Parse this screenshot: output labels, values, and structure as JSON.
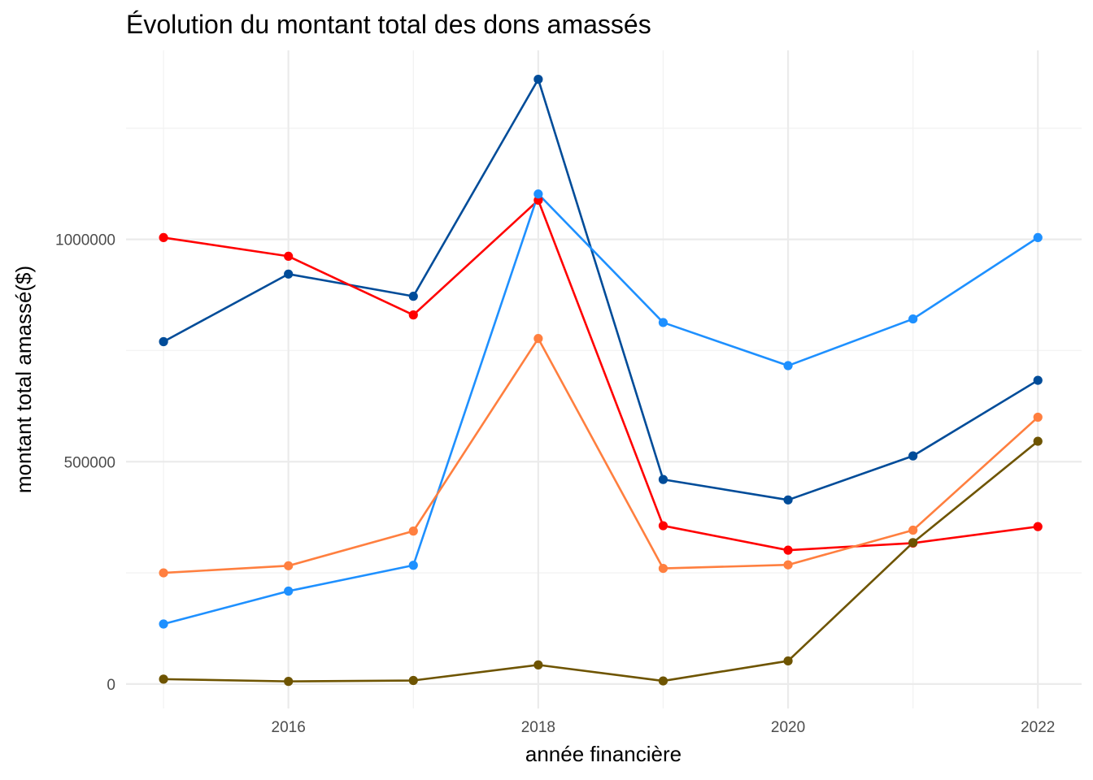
{
  "chart_data": {
    "type": "line",
    "title": "Évolution du montant total des dons amassés",
    "xlabel": "année financière",
    "ylabel": "montant total amassé($)",
    "x": [
      2015,
      2016,
      2017,
      2018,
      2019,
      2020,
      2021,
      2022
    ],
    "xlim": [
      2014.7,
      2022.35
    ],
    "ylim": [
      -55000,
      1425000
    ],
    "x_ticks": [
      2016,
      2018,
      2020,
      2022
    ],
    "x_tick_labels": [
      "2016",
      "2018",
      "2020",
      "2022"
    ],
    "y_ticks": [
      0,
      500000,
      1000000
    ],
    "y_tick_labels": [
      "0",
      "500000",
      "1000000"
    ],
    "x_minor_ticks": [
      2015,
      2017,
      2019,
      2021
    ],
    "y_minor_ticks": [
      250000,
      750000,
      1250000
    ],
    "grid": true,
    "legend": "none",
    "series": [
      {
        "color": "#004C99",
        "values": [
          770000,
          922000,
          872000,
          1360000,
          460000,
          414000,
          513000,
          683000
        ]
      },
      {
        "color": "#FF0000",
        "values": [
          1004000,
          962000,
          830000,
          1088000,
          356000,
          301000,
          317000,
          354000
        ]
      },
      {
        "color": "#1E90FF",
        "values": [
          135000,
          209000,
          267000,
          1102000,
          813000,
          716000,
          821000,
          1004000
        ]
      },
      {
        "color": "#FF7F3F",
        "values": [
          250000,
          266000,
          344000,
          777000,
          260000,
          268000,
          346000,
          600000
        ]
      },
      {
        "color": "#6E5400",
        "values": [
          11000,
          6000,
          8000,
          43000,
          7000,
          52000,
          318000,
          546000
        ]
      }
    ]
  }
}
